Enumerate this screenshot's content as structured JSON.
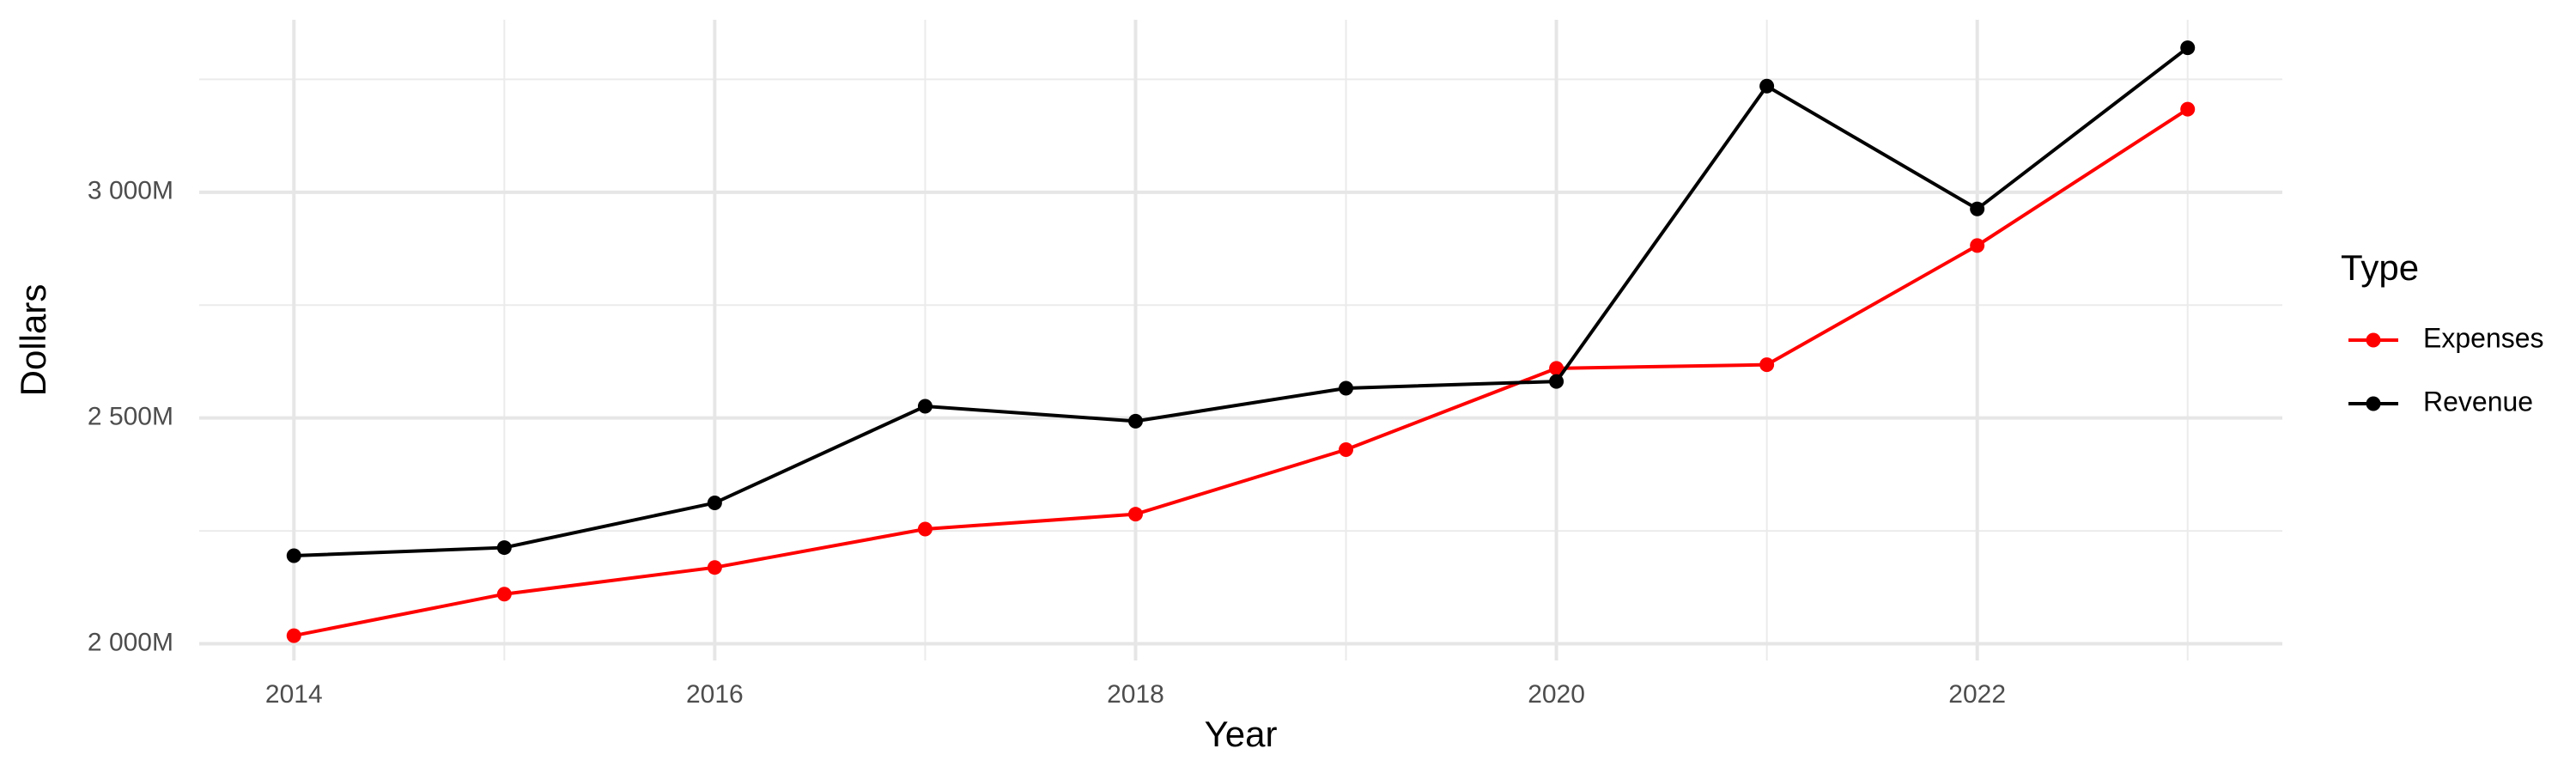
{
  "chart_data": {
    "type": "line",
    "x_label": "Year",
    "y_label": "Dollars",
    "legend_title": "Type",
    "x": [
      2014,
      2015,
      2016,
      2017,
      2018,
      2019,
      2020,
      2021,
      2022,
      2023
    ],
    "series": [
      {
        "name": "Expenses",
        "color": "#ff0000",
        "values": [
          2018,
          2110,
          2169,
          2254,
          2287,
          2430,
          2610,
          2618,
          2882,
          3184
        ]
      },
      {
        "name": "Revenue",
        "color": "#000000",
        "values": [
          2195,
          2213,
          2312,
          2526,
          2493,
          2566,
          2581,
          3235,
          2963,
          3320
        ]
      }
    ],
    "xlim": [
      2013.55,
      2023.45
    ],
    "xticks": [
      2014,
      2016,
      2018,
      2020,
      2022
    ],
    "minor_xticks": [
      2015,
      2017,
      2019,
      2021,
      2023
    ],
    "ylim": [
      1963,
      3382
    ],
    "yticks": [
      {
        "value": 2000,
        "label": "2 000M"
      },
      {
        "value": 2500,
        "label": "2 500M"
      },
      {
        "value": 3000,
        "label": "3 000M"
      }
    ],
    "minor_yticks": [
      2250,
      2750,
      3250
    ],
    "grid": true,
    "legend": "right"
  }
}
